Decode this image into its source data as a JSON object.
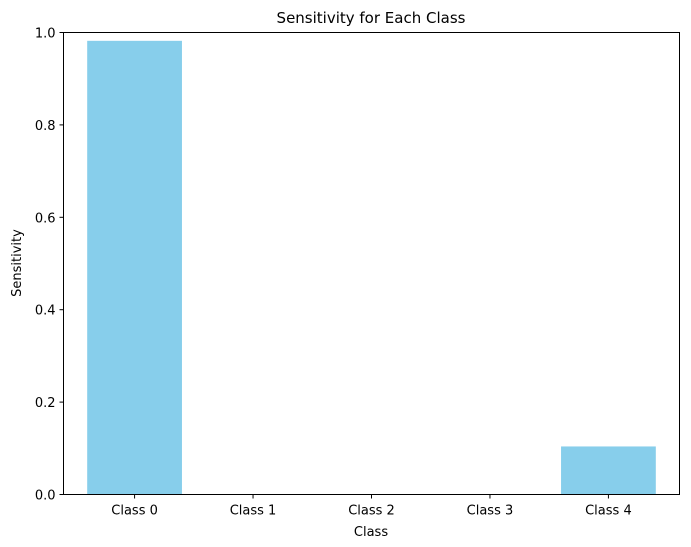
{
  "chart_data": {
    "type": "bar",
    "title": "Sensitivity for Each Class",
    "xlabel": "Class",
    "ylabel": "Sensitivity",
    "categories": [
      "Class 0",
      "Class 1",
      "Class 2",
      "Class 3",
      "Class 4"
    ],
    "values": [
      0.982,
      0.0,
      0.0,
      0.0,
      0.104
    ],
    "ylim": [
      0,
      1.0
    ],
    "yticks": [
      0.0,
      0.2,
      0.4,
      0.6,
      0.8,
      1.0
    ],
    "ytick_labels": [
      "0.0",
      "0.2",
      "0.4",
      "0.6",
      "0.8",
      "1.0"
    ],
    "grid": false,
    "bar_color": "#87ceeb"
  }
}
